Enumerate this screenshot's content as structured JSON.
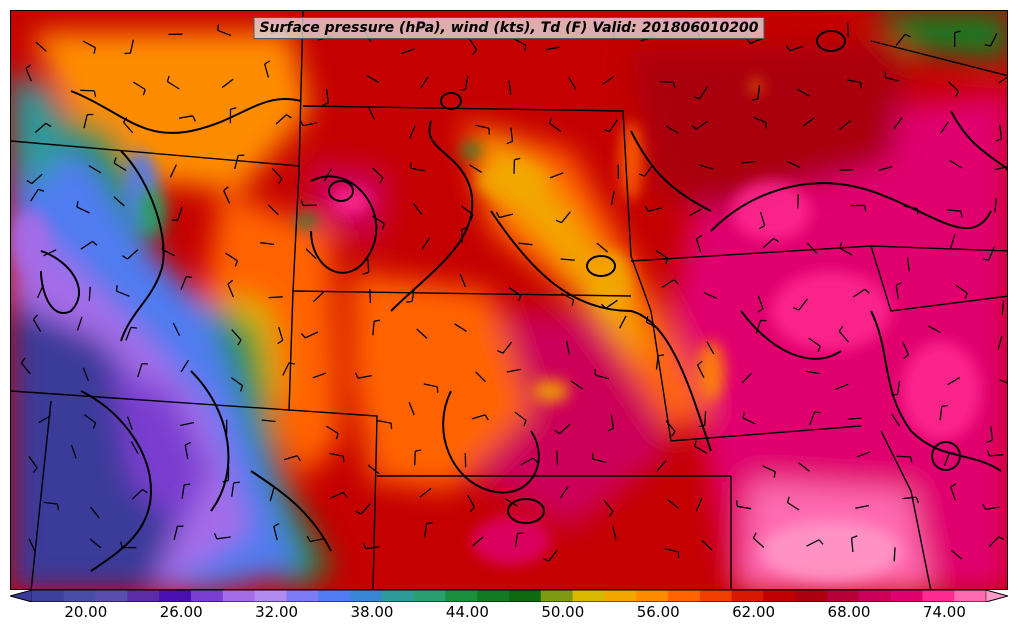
{
  "title": "Surface pressure (hPa), wind (kts), Td (F) Valid: 201806010200",
  "colorbar": {
    "ticks": [
      "20.00",
      "26.00",
      "32.00",
      "38.00",
      "44.00",
      "50.00",
      "56.00",
      "62.00",
      "68.00",
      "74.00"
    ],
    "colors": [
      "#3a3a9a",
      "#3f3f9e",
      "#4b4ba8",
      "#5a4fb0",
      "#5b2ca6",
      "#4a0fb0",
      "#7a3ed0",
      "#a56ce8",
      "#b08cf0",
      "#7d7bf5",
      "#4f7cf0",
      "#3a86d6",
      "#2f9a9a",
      "#2aa070",
      "#1b8f3d",
      "#127a22",
      "#0e6a10",
      "#7e9a12",
      "#d8b800",
      "#f2a800",
      "#ff8c00",
      "#ff6400",
      "#f03e00",
      "#d81800",
      "#c00000",
      "#aa0010",
      "#b80038",
      "#cc0058",
      "#e0006e",
      "#ff2a90",
      "#ff6ab0",
      "#ff9ac8"
    ]
  }
}
